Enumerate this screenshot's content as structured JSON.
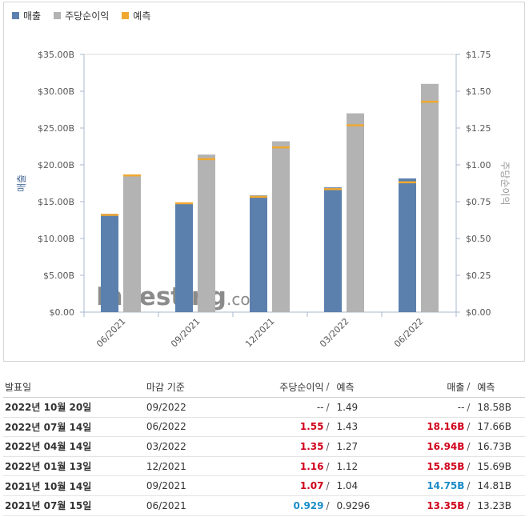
{
  "legend": {
    "items": [
      {
        "label": "매출",
        "color": "#5b80ad"
      },
      {
        "label": "주당순이익",
        "color": "#b3b3b3"
      },
      {
        "label": "예측",
        "color": "#f0a830"
      }
    ]
  },
  "watermark": {
    "brand": "Investing",
    "suffix": ".com"
  },
  "chart_data": {
    "type": "bar",
    "categories": [
      "06/2021",
      "09/2021",
      "12/2021",
      "03/2022",
      "06/2022"
    ],
    "series": [
      {
        "name": "매출",
        "axis": "left",
        "values": [
          13.35,
          14.75,
          15.85,
          16.94,
          18.16
        ],
        "forecast": [
          13.23,
          14.81,
          15.69,
          16.73,
          17.66
        ],
        "color": "#5b80ad"
      },
      {
        "name": "주당순이익",
        "axis": "right",
        "values": [
          0.929,
          1.07,
          1.16,
          1.35,
          1.55
        ],
        "forecast": [
          0.9296,
          1.04,
          1.12,
          1.27,
          1.43
        ],
        "color": "#b3b3b3"
      }
    ],
    "forecast_color": "#f0a830",
    "ylabel_left": "매출",
    "ylabel_right": "주당순이익",
    "ylim_left": [
      0,
      35
    ],
    "ylim_right": [
      0,
      1.75
    ],
    "yticks_left": [
      "$0.00",
      "$5.00B",
      "$10.00B",
      "$15.00B",
      "$20.00B",
      "$25.00B",
      "$30.00B",
      "$35.00B"
    ],
    "yticks_right": [
      "$0.00",
      "$0.25",
      "$0.50",
      "$0.75",
      "$1.00",
      "$1.25",
      "$1.50",
      "$1.75"
    ],
    "legend_position": "top-left"
  },
  "table": {
    "headers": {
      "date": "발표일",
      "period": "마감 기준",
      "eps": "주당순이익",
      "sep": "/",
      "eps_forecast": "예측",
      "revenue": "매출",
      "revenue_forecast": "예측"
    },
    "rows": [
      {
        "date": "2022년 10월 20일",
        "period": "09/2022",
        "eps": "--",
        "sep": "/",
        "eps_forecast": "1.49",
        "revenue": "--",
        "revenue_forecast": "18.58B"
      },
      {
        "date": "2022년 07월 14일",
        "period": "06/2022",
        "eps": "1.55",
        "sep": "/",
        "eps_forecast": "1.43",
        "revenue": "18.16B",
        "revenue_forecast": "17.66B"
      },
      {
        "date": "2022년 04월 14일",
        "period": "03/2022",
        "eps": "1.35",
        "sep": "/",
        "eps_forecast": "1.27",
        "revenue": "16.94B",
        "revenue_forecast": "16.73B"
      },
      {
        "date": "2022년 01월 13일",
        "period": "12/2021",
        "eps": "1.16",
        "sep": "/",
        "eps_forecast": "1.12",
        "revenue": "15.85B",
        "revenue_forecast": "15.69B"
      },
      {
        "date": "2021년 10월 14일",
        "period": "09/2021",
        "eps": "1.07",
        "sep": "/",
        "eps_forecast": "1.04",
        "revenue": "14.75B",
        "revenue_forecast": "14.81B"
      },
      {
        "date": "2021년 07월 15일",
        "period": "06/2021",
        "eps": "0.929",
        "sep": "/",
        "eps_forecast": "0.9296",
        "revenue": "13.35B",
        "revenue_forecast": "13.23B"
      }
    ],
    "eps_status": [
      "neutral",
      "pos",
      "pos",
      "pos",
      "pos",
      "neg"
    ],
    "revenue_status": [
      "neutral",
      "pos",
      "pos",
      "pos",
      "neg",
      "pos"
    ]
  }
}
